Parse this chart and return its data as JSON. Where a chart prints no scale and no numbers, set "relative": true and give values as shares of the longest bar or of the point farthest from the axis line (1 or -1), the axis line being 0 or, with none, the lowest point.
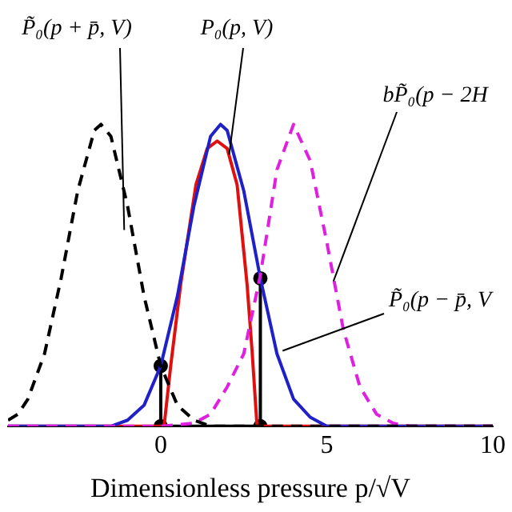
{
  "chart_data": {
    "type": "line",
    "relative": true,
    "xlabel": "Dimensionless pressure p/√V",
    "xlim": [
      -4.6,
      10
    ],
    "xticks": [
      0,
      5,
      10
    ],
    "grid": false,
    "legend": false,
    "marker": "none",
    "series": [
      {
        "type": "line",
        "color": "#000000",
        "line_style": "dashed",
        "x": [
          -4.6,
          -4.3,
          -4,
          -3.5,
          -3,
          -2.5,
          -2,
          -1.8,
          -1.5,
          -1,
          -0.5,
          0,
          0.5,
          1,
          1.5,
          10
        ],
        "values": [
          0.02,
          0.04,
          0.09,
          0.24,
          0.49,
          0.78,
          0.98,
          1,
          0.96,
          0.73,
          0.43,
          0.2,
          0.07,
          0.02,
          0,
          0
        ]
      },
      {
        "type": "line",
        "color": "#e020e0",
        "line_style": "dashed",
        "x": [
          -4.6,
          0,
          1,
          1.5,
          2,
          2.5,
          3,
          3.5,
          4,
          4.5,
          5,
          5.5,
          6,
          6.5,
          7,
          7.5,
          10
        ],
        "values": [
          0,
          0,
          0.01,
          0.04,
          0.13,
          0.24,
          0.5,
          0.85,
          1,
          0.88,
          0.61,
          0.32,
          0.13,
          0.04,
          0.01,
          0,
          0
        ]
      },
      {
        "type": "line",
        "color": "#2020c8",
        "line_style": "solid",
        "x": [
          -4.6,
          -1.5,
          -1,
          -0.5,
          0,
          0.5,
          1,
          1.5,
          1.8,
          2,
          2.5,
          3,
          3.5,
          4,
          4.5,
          5,
          10
        ],
        "values": [
          0,
          0,
          0.02,
          0.07,
          0.2,
          0.43,
          0.73,
          0.96,
          1,
          0.98,
          0.78,
          0.49,
          0.24,
          0.09,
          0.03,
          0,
          0
        ]
      },
      {
        "type": "line",
        "color": "#e01010",
        "line_style": "solid",
        "x": [
          -4.6,
          0.1,
          0.3,
          0.6,
          1.06,
          1.4,
          1.7,
          2,
          2.3,
          2.6,
          2.75,
          2.9,
          10
        ],
        "values": [
          0,
          0,
          0.2,
          0.47,
          0.8,
          0.92,
          0.945,
          0.92,
          0.8,
          0.47,
          0.25,
          0,
          0
        ]
      },
      {
        "type": "line",
        "color": "#000000",
        "line_style": "solid",
        "x": [
          0,
          0
        ],
        "values": [
          0.2,
          0
        ]
      },
      {
        "type": "line",
        "color": "#000000",
        "line_style": "solid",
        "x": [
          3,
          3
        ],
        "values": [
          0.49,
          0
        ]
      },
      {
        "type": "line",
        "color": "#000000",
        "line_style": "solid",
        "x": [
          0,
          3
        ],
        "values": [
          0,
          0
        ]
      },
      {
        "type": "scatter",
        "color": "#000000",
        "marker": "circle",
        "x": [
          0,
          0,
          3,
          3
        ],
        "values": [
          0.2,
          0,
          0.49,
          0
        ]
      }
    ],
    "annotations": [
      {
        "text": "P̃₀(p + p̄, V)",
        "x": -1.1,
        "y": 0.65
      },
      {
        "text": "P₀(p, V)",
        "x": 2.06,
        "y": 0.9
      },
      {
        "text": "bP̃₀(p − 2H",
        "x": 5.2,
        "y": 0.48
      },
      {
        "text": "P̃₀(p − p̄, V",
        "x": 3.67,
        "y": 0.25
      }
    ]
  }
}
